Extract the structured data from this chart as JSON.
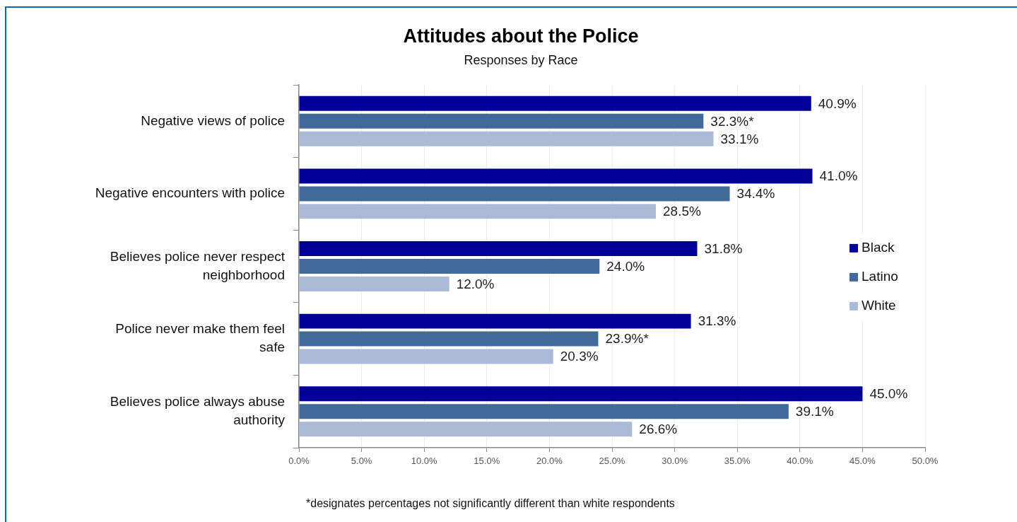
{
  "chart_data": {
    "type": "bar",
    "orientation": "horizontal",
    "title": "Attitudes about the Police",
    "subtitle": "Responses by Race",
    "categories": [
      "Negative views of police",
      "Negative encounters with police",
      "Believes police never respect neighborhood",
      "Police never make them feel safe",
      "Believes police always abuse authority"
    ],
    "series": [
      {
        "name": "Black",
        "color": "#000099",
        "values": [
          40.9,
          41.0,
          31.8,
          31.3,
          45.0
        ],
        "value_labels": [
          "40.9%",
          "41.0%",
          "31.8%",
          "31.3%",
          "45.0%"
        ]
      },
      {
        "name": "Latino",
        "color": "#406a9a",
        "values": [
          32.3,
          34.4,
          24.0,
          23.9,
          39.1
        ],
        "value_labels": [
          "32.3%*",
          "34.4%",
          "24.0%",
          "23.9%*",
          "39.1%"
        ]
      },
      {
        "name": "White",
        "color": "#abbad6",
        "values": [
          33.1,
          28.5,
          12.0,
          20.3,
          26.6
        ],
        "value_labels": [
          "33.1%",
          "28.5%",
          "12.0%",
          "20.3%",
          "26.6%"
        ]
      }
    ],
    "xlim": [
      0,
      50
    ],
    "xticks": [
      {
        "value": 0,
        "label": "0.0%"
      },
      {
        "value": 5,
        "label": "5.0%"
      },
      {
        "value": 10,
        "label": "10.0%"
      },
      {
        "value": 15,
        "label": "15.0%"
      },
      {
        "value": 20,
        "label": "20.0%"
      },
      {
        "value": 25,
        "label": "25.0%"
      },
      {
        "value": 30,
        "label": "30.0%"
      },
      {
        "value": 35,
        "label": "35.0%"
      },
      {
        "value": 40,
        "label": "40.0%"
      },
      {
        "value": 45,
        "label": "45.0%"
      },
      {
        "value": 50,
        "label": "50.0%"
      }
    ],
    "grid": "x",
    "legend": "right",
    "annotations": [
      "*designates percentages not significantly different than white respondents"
    ]
  }
}
